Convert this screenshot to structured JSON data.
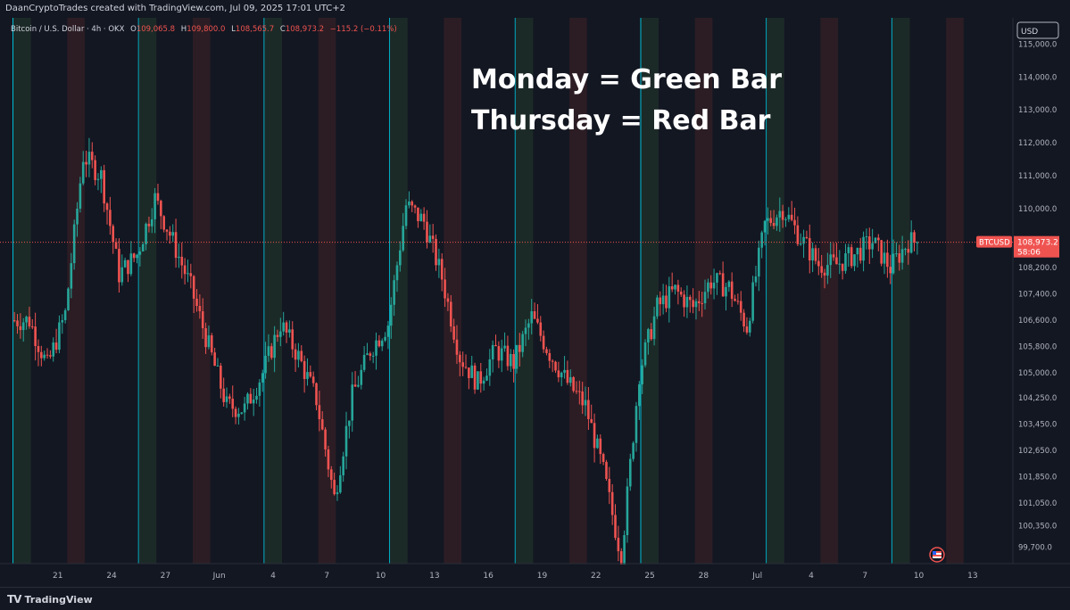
{
  "header": {
    "attribution": "DaanCryptoTrades created with TradingView.com, Jul 09, 2025 17:01 UTC+2"
  },
  "legend": {
    "symbol": "Bitcoin / U.S. Dollar · 4h · OKX",
    "o_label": "O",
    "o": "109,065.8",
    "h_label": "H",
    "h": "109,800.0",
    "l_label": "L",
    "l": "108,565.7",
    "c_label": "C",
    "c": "108,973.2",
    "change": "−115.2 (−0.11%)"
  },
  "annotation": {
    "line1": "Monday = Green Bar",
    "line2": "Thursday = Red Bar"
  },
  "price_tag": {
    "symbol": "BTCUSD",
    "price": "108,973.2",
    "countdown": "58:06"
  },
  "currency": "USD",
  "footer": {
    "brand": "TradingView",
    "logo": "TV"
  },
  "colors": {
    "bg": "#131722",
    "up": "#26a69a",
    "down": "#ef5350",
    "monday_band": "#1c2a27",
    "thursday_band": "#2c1d24",
    "week_line": "#00bcd4",
    "text": "#d1d4dc"
  },
  "chart_data": {
    "type": "candlestick",
    "timeframe": "4h",
    "ylim": [
      99200,
      115800
    ],
    "y_ticks": [
      115000,
      114000,
      113000,
      112000,
      111000,
      110000,
      108973.2,
      108200,
      107400,
      106600,
      105800,
      105000,
      104250,
      103450,
      102650,
      101850,
      101050,
      100350,
      99700
    ],
    "y_tick_labels": [
      "115,000.0",
      "114,000.0",
      "113,000.0",
      "112,000.0",
      "111,000.0",
      "110,000.0",
      "108,973.2",
      "108,200.0",
      "107,400.0",
      "106,600.0",
      "105,800.0",
      "105,000.0",
      "104,250.0",
      "103,450.0",
      "102,650.0",
      "101,850.0",
      "101,050.0",
      "100,350.0",
      "99,700.0"
    ],
    "x_tick_labels": [
      "21",
      "24",
      "27",
      "Jun",
      "4",
      "7",
      "10",
      "13",
      "16",
      "19",
      "22",
      "25",
      "28",
      "Jul",
      "4",
      "7",
      "10",
      "13"
    ],
    "day_markers": [
      {
        "type": "week",
        "day": 0
      },
      {
        "type": "monday",
        "day": 0
      },
      {
        "type": "thursday",
        "day": 3
      },
      {
        "type": "week",
        "day": 7
      },
      {
        "type": "monday",
        "day": 7
      },
      {
        "type": "thursday",
        "day": 10
      },
      {
        "type": "week",
        "day": 14
      },
      {
        "type": "monday",
        "day": 14
      },
      {
        "type": "thursday",
        "day": 17
      },
      {
        "type": "week",
        "day": 21
      },
      {
        "type": "monday",
        "day": 21
      },
      {
        "type": "thursday",
        "day": 24
      },
      {
        "type": "week",
        "day": 28
      },
      {
        "type": "monday",
        "day": 28
      },
      {
        "type": "thursday",
        "day": 31
      },
      {
        "type": "week",
        "day": 35
      },
      {
        "type": "monday",
        "day": 35
      },
      {
        "type": "thursday",
        "day": 38
      },
      {
        "type": "week",
        "day": 42
      },
      {
        "type": "monday",
        "day": 42
      },
      {
        "type": "thursday",
        "day": 45
      },
      {
        "type": "week",
        "day": 49
      },
      {
        "type": "monday",
        "day": 49
      },
      {
        "type": "thursday",
        "day": 52
      }
    ],
    "close_path_days": [
      0,
      1,
      2,
      3,
      4,
      5,
      6,
      7,
      8,
      9,
      10,
      11,
      12,
      13,
      14,
      15,
      16,
      17,
      18,
      19,
      20,
      21,
      22,
      23,
      24,
      25,
      26,
      27,
      28,
      29,
      30,
      31,
      32,
      33,
      34,
      35,
      36,
      37,
      38,
      39,
      40,
      41,
      42,
      43,
      44,
      45,
      46,
      47,
      48,
      49,
      50,
      51,
      52
    ],
    "daily_close": [
      106600,
      105200,
      106800,
      111600,
      111000,
      108000,
      108600,
      110300,
      109000,
      107600,
      105800,
      104000,
      103900,
      105000,
      106500,
      105500,
      104200,
      101200,
      104300,
      105700,
      106500,
      110100,
      109600,
      107900,
      105500,
      104700,
      105700,
      105300,
      106700,
      105600,
      104700,
      104000,
      102000,
      99400,
      105000,
      107000,
      107500,
      107000,
      107800,
      107600,
      106400,
      109500,
      110000,
      109100,
      108300,
      108300,
      108600,
      109000,
      108200,
      109000,
      108973.2,
      108973.2,
      108973.2
    ],
    "last_price": 108973.2
  }
}
